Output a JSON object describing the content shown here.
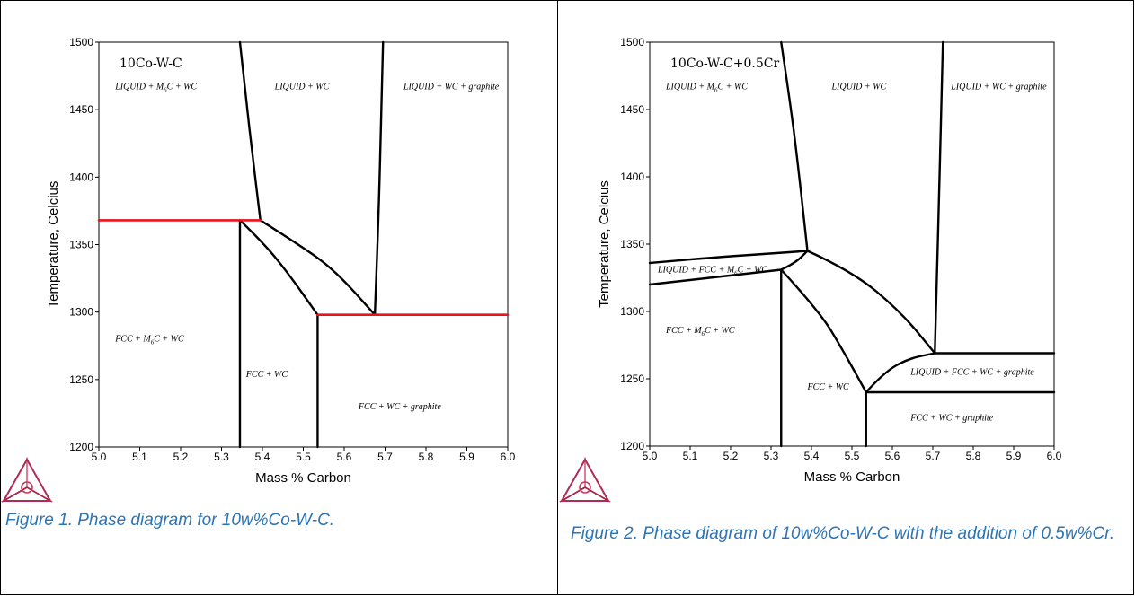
{
  "figures": [
    {
      "caption": "Figure 1. Phase diagram for 10w%Co-W-C."
    },
    {
      "caption": "Figure 2.  Phase diagram of 10w%Co-W-C with the addition of 0.5w%Cr."
    }
  ],
  "chart_data": [
    {
      "type": "line",
      "title": "10Co-W-C",
      "xlabel": "Mass % Carbon",
      "ylabel": "Temperature, Celcius",
      "xlim": [
        5.0,
        6.0
      ],
      "ylim": [
        1200,
        1500
      ],
      "x_ticks": [
        "5.0",
        "5.1",
        "5.2",
        "5.3",
        "5.4",
        "5.5",
        "5.6",
        "5.7",
        "5.8",
        "5.9",
        "6.0"
      ],
      "y_ticks": [
        "1200",
        "1250",
        "1300",
        "1350",
        "1400",
        "1450",
        "1500"
      ],
      "grid": false,
      "series": [
        {
          "color": "#000000",
          "points": [
            [
              5.345,
              1500
            ],
            [
              5.36,
              1458
            ],
            [
              5.375,
              1418
            ],
            [
              5.395,
              1368
            ]
          ]
        },
        {
          "color": "#000000",
          "points": [
            [
              5.695,
              1500
            ],
            [
              5.69,
              1440
            ],
            [
              5.685,
              1380
            ],
            [
              5.675,
              1298
            ]
          ]
        },
        {
          "color": "#000000",
          "points": [
            [
              5.395,
              1368
            ],
            [
              5.5,
              1348
            ],
            [
              5.58,
              1330
            ],
            [
              5.675,
              1298
            ]
          ]
        },
        {
          "color": "#000000",
          "points": [
            [
              5.345,
              1368
            ],
            [
              5.4,
              1352
            ],
            [
              5.46,
              1330
            ],
            [
              5.535,
              1298
            ]
          ]
        },
        {
          "color": "#000000",
          "points": [
            [
              5.345,
              1368
            ],
            [
              5.345,
              1200
            ]
          ]
        },
        {
          "color": "#000000",
          "points": [
            [
              5.535,
              1298
            ],
            [
              5.535,
              1200
            ]
          ]
        },
        {
          "color": "#e8141c",
          "points": [
            [
              5.0,
              1368
            ],
            [
              5.395,
              1368
            ]
          ]
        },
        {
          "color": "#e8141c",
          "points": [
            [
              5.535,
              1298
            ],
            [
              6.0,
              1298
            ]
          ]
        }
      ],
      "annotations": [
        {
          "text": "LIQUID + M",
          "sub": "6",
          "rest": "C + WC",
          "x": 5.04,
          "y": 1465
        },
        {
          "text": "LIQUID + WC",
          "x": 5.43,
          "y": 1465
        },
        {
          "text": "LIQUID + WC + graphite",
          "x": 5.745,
          "y": 1465
        },
        {
          "text": "FCC + M",
          "sub": "6",
          "rest": "C + WC",
          "x": 5.04,
          "y": 1278
        },
        {
          "text": "FCC + WC",
          "x": 5.36,
          "y": 1252
        },
        {
          "text": "FCC + WC + graphite",
          "x": 5.635,
          "y": 1228
        }
      ]
    },
    {
      "type": "line",
      "title": "10Co-W-C+0.5Cr",
      "xlabel": "Mass % Carbon",
      "ylabel": "Temperature, Celcius",
      "xlim": [
        5.0,
        6.0
      ],
      "ylim": [
        1200,
        1500
      ],
      "x_ticks": [
        "5.0",
        "5.1",
        "5.2",
        "5.3",
        "5.4",
        "5.5",
        "5.6",
        "5.7",
        "5.8",
        "5.9",
        "6.0"
      ],
      "y_ticks": [
        "1200",
        "1250",
        "1300",
        "1350",
        "1400",
        "1450",
        "1500"
      ],
      "grid": false,
      "series": [
        {
          "color": "#000000",
          "points": [
            [
              5.325,
              1500
            ],
            [
              5.35,
              1450
            ],
            [
              5.37,
              1400
            ],
            [
              5.39,
              1345
            ]
          ]
        },
        {
          "color": "#000000",
          "points": [
            [
              5.725,
              1500
            ],
            [
              5.72,
              1440
            ],
            [
              5.715,
              1380
            ],
            [
              5.71,
              1325
            ],
            [
              5.705,
              1269
            ]
          ]
        },
        {
          "color": "#000000",
          "points": [
            [
              5.0,
              1336
            ],
            [
              5.15,
              1340
            ],
            [
              5.3,
              1343
            ],
            [
              5.39,
              1345
            ]
          ]
        },
        {
          "color": "#000000",
          "points": [
            [
              5.0,
              1320
            ],
            [
              5.15,
              1325
            ],
            [
              5.325,
              1331
            ]
          ]
        },
        {
          "color": "#000000",
          "points": [
            [
              5.325,
              1331
            ],
            [
              5.36,
              1336
            ],
            [
              5.39,
              1345
            ]
          ]
        },
        {
          "color": "#000000",
          "points": [
            [
              5.39,
              1345
            ],
            [
              5.5,
              1330
            ],
            [
              5.62,
              1300
            ],
            [
              5.705,
              1269
            ]
          ]
        },
        {
          "color": "#000000",
          "points": [
            [
              5.325,
              1331
            ],
            [
              5.42,
              1300
            ],
            [
              5.48,
              1270
            ],
            [
              5.535,
              1240
            ]
          ]
        },
        {
          "color": "#000000",
          "points": [
            [
              5.535,
              1240
            ],
            [
              5.58,
              1255
            ],
            [
              5.64,
              1265
            ],
            [
              5.705,
              1269
            ]
          ]
        },
        {
          "color": "#000000",
          "points": [
            [
              5.705,
              1269
            ],
            [
              6.0,
              1269
            ]
          ]
        },
        {
          "color": "#000000",
          "points": [
            [
              5.535,
              1240
            ],
            [
              6.0,
              1240
            ]
          ]
        },
        {
          "color": "#000000",
          "points": [
            [
              5.325,
              1331
            ],
            [
              5.325,
              1200
            ]
          ]
        },
        {
          "color": "#000000",
          "points": [
            [
              5.535,
              1240
            ],
            [
              5.535,
              1200
            ]
          ]
        }
      ],
      "annotations": [
        {
          "text": "LIQUID + M",
          "sub": "6",
          "rest": "C + WC",
          "x": 5.04,
          "y": 1465
        },
        {
          "text": "LIQUID + WC",
          "x": 5.45,
          "y": 1465
        },
        {
          "text": "LIQUID + WC + graphite",
          "x": 5.745,
          "y": 1465
        },
        {
          "text": "LIQUID + FCC + M",
          "sub": "6",
          "rest": "C + WC",
          "x": 5.02,
          "y": 1329
        },
        {
          "text": "FCC + M",
          "sub": "6",
          "rest": "C + WC",
          "x": 5.04,
          "y": 1284
        },
        {
          "text": "FCC + WC",
          "x": 5.39,
          "y": 1242
        },
        {
          "text": "LIQUID + FCC + WC + graphite",
          "x": 5.645,
          "y": 1253
        },
        {
          "text": "FCC + WC + graphite",
          "x": 5.645,
          "y": 1219
        }
      ]
    }
  ]
}
